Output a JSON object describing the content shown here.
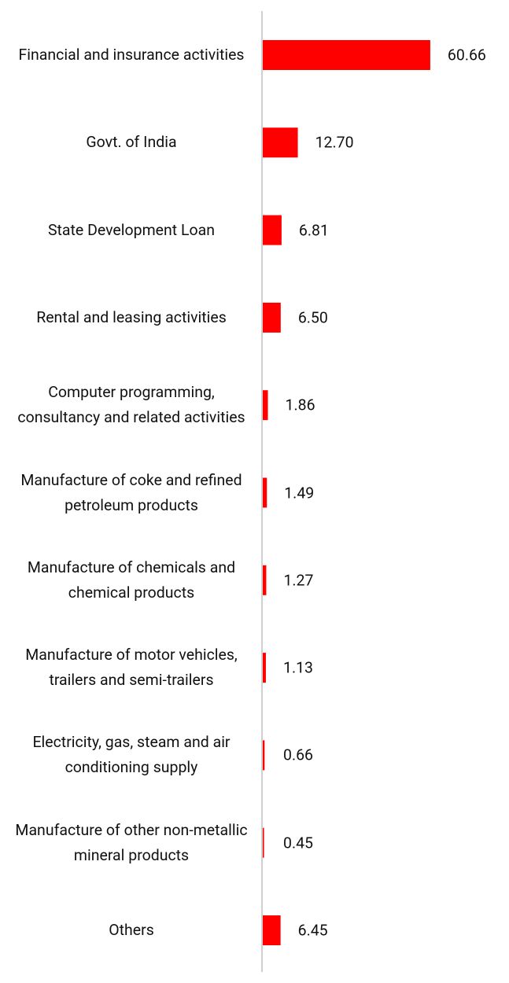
{
  "chart_data": {
    "type": "bar",
    "orientation": "horizontal",
    "categories": [
      "Financial and insurance activities",
      "Govt. of India",
      "State Development Loan",
      "Rental and leasing activities",
      "Computer programming, consultancy and related activities",
      "Manufacture of coke and refined petroleum products",
      "Manufacture of chemicals and chemical products",
      "Manufacture of motor vehicles, trailers and semi-trailers",
      "Electricity, gas, steam and air conditioning supply",
      "Manufacture of other non-metallic mineral products",
      "Others"
    ],
    "values": [
      60.66,
      12.7,
      6.81,
      6.5,
      1.86,
      1.49,
      1.27,
      1.13,
      0.66,
      0.45,
      6.45
    ],
    "value_labels": [
      "60.66",
      "12.70",
      "6.81",
      "6.50",
      "1.86",
      "1.49",
      "1.27",
      "1.13",
      "0.66",
      "0.45",
      "6.45"
    ],
    "color": "#ff0000"
  }
}
